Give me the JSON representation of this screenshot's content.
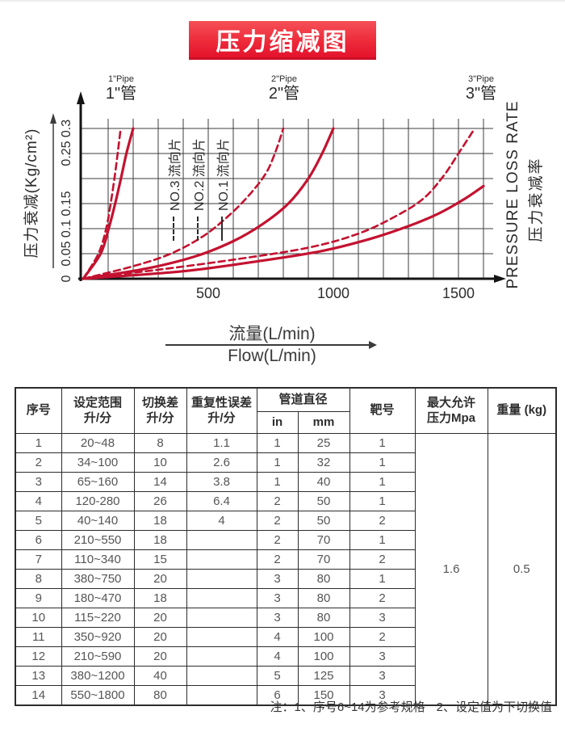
{
  "page": {
    "title_banner": "压力缩减图"
  },
  "chart_data": {
    "type": "line",
    "title": "压力缩减图",
    "xlabel_zh": "流量(L/min)",
    "xlabel_en": "Flow(L/min)",
    "ylabel": "压力衰减(Kg/cm²)",
    "ylabel_right_en": "PRESSURE LOSS RATE",
    "ylabel_right_zh": "压力衰减率",
    "xlim": [
      0,
      1600
    ],
    "ylim": [
      0,
      0.3
    ],
    "x_ticks": [
      "500",
      "1000",
      "1500"
    ],
    "y_ticks": [
      "0",
      "0.05",
      "0.1",
      "0.15",
      "0.25",
      "0.3"
    ],
    "grid": true,
    "grid_x_step": 100,
    "grid_y_step": 0.05,
    "line_color": "#c41230",
    "pipe_labels": [
      {
        "en": "1\"Pipe",
        "zh": "1\"管"
      },
      {
        "en": "2\"Pipe",
        "zh": "2\"管"
      },
      {
        "en": "3\"Pipe",
        "zh": "3\"管"
      }
    ],
    "legend": [
      {
        "label": "NO.3 流向片",
        "style": "dashed"
      },
      {
        "label": "NO.2 流向片",
        "style": "dashed"
      },
      {
        "label": "NO.1 流向片",
        "style": "solid"
      }
    ],
    "series": [
      {
        "name": "1\" pipe dashed",
        "style": "dashed",
        "points": [
          [
            0,
            0
          ],
          [
            61,
            0.05
          ],
          [
            92,
            0.1
          ],
          [
            110,
            0.15
          ],
          [
            125,
            0.2
          ],
          [
            138,
            0.25
          ],
          [
            150,
            0.3
          ]
        ]
      },
      {
        "name": "1\" pipe solid",
        "style": "solid",
        "points": [
          [
            0,
            0
          ],
          [
            70,
            0.05
          ],
          [
            102,
            0.1
          ],
          [
            128,
            0.15
          ],
          [
            151,
            0.2
          ],
          [
            173,
            0.25
          ],
          [
            200,
            0.3
          ]
        ]
      },
      {
        "name": "2\" pipe dashed",
        "style": "dashed",
        "points": [
          [
            0,
            0
          ],
          [
            200,
            0.025
          ],
          [
            350,
            0.05
          ],
          [
            480,
            0.085
          ],
          [
            580,
            0.125
          ],
          [
            660,
            0.165
          ],
          [
            730,
            0.21
          ],
          [
            770,
            0.255
          ],
          [
            800,
            0.3
          ]
        ]
      },
      {
        "name": "2\" pipe solid",
        "style": "solid",
        "points": [
          [
            0,
            0
          ],
          [
            250,
            0.02
          ],
          [
            450,
            0.045
          ],
          [
            600,
            0.075
          ],
          [
            720,
            0.11
          ],
          [
            820,
            0.15
          ],
          [
            900,
            0.2
          ],
          [
            955,
            0.25
          ],
          [
            1000,
            0.3
          ]
        ]
      },
      {
        "name": "3\" pipe dashed",
        "style": "dashed",
        "points": [
          [
            0,
            0
          ],
          [
            300,
            0.018
          ],
          [
            600,
            0.038
          ],
          [
            900,
            0.062
          ],
          [
            1100,
            0.09
          ],
          [
            1250,
            0.125
          ],
          [
            1360,
            0.16
          ],
          [
            1440,
            0.205
          ],
          [
            1500,
            0.25
          ],
          [
            1565,
            0.3
          ]
        ]
      },
      {
        "name": "3\" pipe solid",
        "style": "solid",
        "points": [
          [
            0,
            0
          ],
          [
            400,
            0.015
          ],
          [
            700,
            0.035
          ],
          [
            950,
            0.055
          ],
          [
            1150,
            0.08
          ],
          [
            1300,
            0.105
          ],
          [
            1420,
            0.13
          ],
          [
            1520,
            0.158
          ],
          [
            1600,
            0.185
          ]
        ]
      }
    ]
  },
  "table": {
    "headers": {
      "serial": "序号",
      "range": "设定范围\n升/分",
      "switch_diff": "切换差\n升/分",
      "repeatability": "重复性误差\n升/分",
      "pipe_diameter": "管道直径",
      "in": "in",
      "mm": "mm",
      "target": "靶号",
      "max_pressure": "最大允许\n压力Mpa",
      "weight": "重量 (kg)"
    },
    "rows": [
      [
        "1",
        "20~48",
        "8",
        "1.1",
        "1",
        "25",
        "1"
      ],
      [
        "2",
        "34~100",
        "10",
        "2.6",
        "1",
        "32",
        "1"
      ],
      [
        "3",
        "65~160",
        "14",
        "3.8",
        "1",
        "40",
        "1"
      ],
      [
        "4",
        "120-280",
        "26",
        "6.4",
        "2",
        "50",
        "1"
      ],
      [
        "5",
        "40~140",
        "18",
        "4",
        "2",
        "50",
        "2"
      ],
      [
        "6",
        "210~550",
        "18",
        "",
        "2",
        "70",
        "1"
      ],
      [
        "7",
        "110~340",
        "15",
        "",
        "2",
        "70",
        "2"
      ],
      [
        "8",
        "380~750",
        "20",
        "",
        "3",
        "80",
        "1"
      ],
      [
        "9",
        "180~470",
        "18",
        "",
        "3",
        "80",
        "2"
      ],
      [
        "10",
        "115~220",
        "20",
        "",
        "3",
        "80",
        "3"
      ],
      [
        "11",
        "350~920",
        "20",
        "",
        "4",
        "100",
        "2"
      ],
      [
        "12",
        "210~590",
        "20",
        "",
        "4",
        "100",
        "3"
      ],
      [
        "13",
        "380~1200",
        "40",
        "",
        "5",
        "125",
        "3"
      ],
      [
        "14",
        "550~1800",
        "80",
        "",
        "6",
        "150",
        "3"
      ]
    ],
    "merged": {
      "max_pressure": "1.6",
      "weight": "0.5"
    }
  },
  "note": {
    "prefix": "注：",
    "item1": "1、序号6~14为参考规格",
    "item2": "2、设定值为下切换值"
  }
}
